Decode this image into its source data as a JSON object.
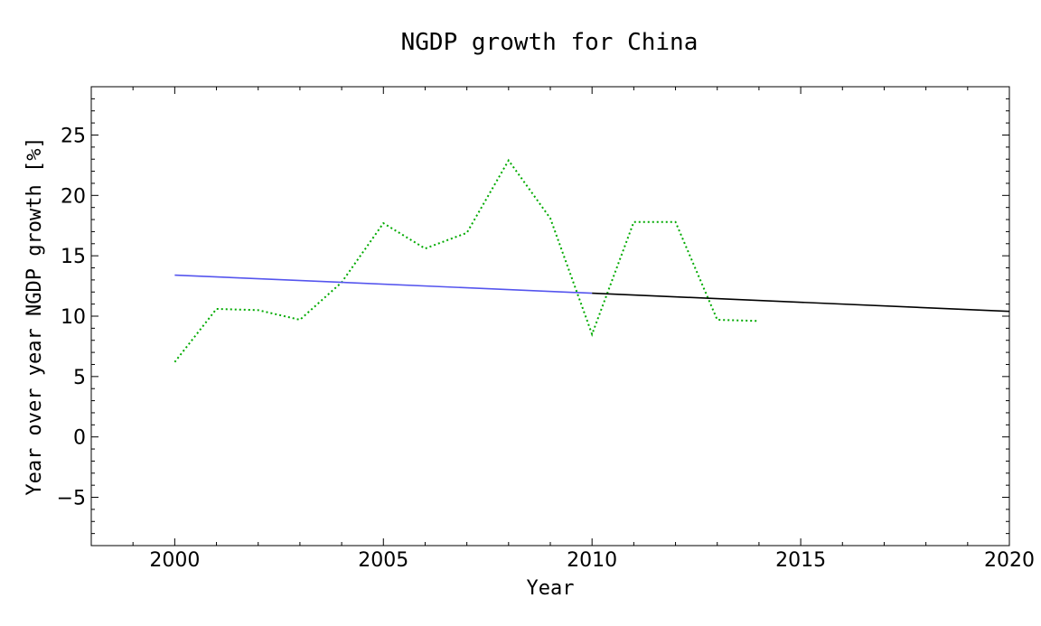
{
  "chart_data": {
    "type": "line",
    "title": "NGDP growth for China",
    "xlabel": "Year",
    "ylabel": "Year over year NGDP growth [%]",
    "xlim": [
      1998,
      2020
    ],
    "ylim": [
      -9,
      29
    ],
    "x_ticks": [
      "2000",
      "2005",
      "2010",
      "2015",
      "2020"
    ],
    "y_ticks": [
      "−5",
      "0",
      "5",
      "10",
      "15",
      "20",
      "25"
    ],
    "grid": false,
    "series": [
      {
        "style": "dotted",
        "color": "#00aa00",
        "x": [
          2000,
          2001,
          2002,
          2003,
          2004,
          2005,
          2006,
          2007,
          2008,
          2009,
          2010,
          2011,
          2012,
          2013,
          2014
        ],
        "y": [
          6.2,
          10.6,
          10.5,
          9.7,
          12.8,
          17.7,
          15.6,
          16.9,
          22.9,
          18.1,
          8.5,
          17.8,
          17.8,
          9.7,
          9.6
        ]
      },
      {
        "style": "solid",
        "color": "#5555ee",
        "x": [
          2000,
          2010
        ],
        "y": [
          13.4,
          11.9
        ]
      },
      {
        "style": "solid",
        "color": "#000000",
        "x": [
          2010,
          2020
        ],
        "y": [
          11.9,
          10.4
        ]
      }
    ]
  }
}
